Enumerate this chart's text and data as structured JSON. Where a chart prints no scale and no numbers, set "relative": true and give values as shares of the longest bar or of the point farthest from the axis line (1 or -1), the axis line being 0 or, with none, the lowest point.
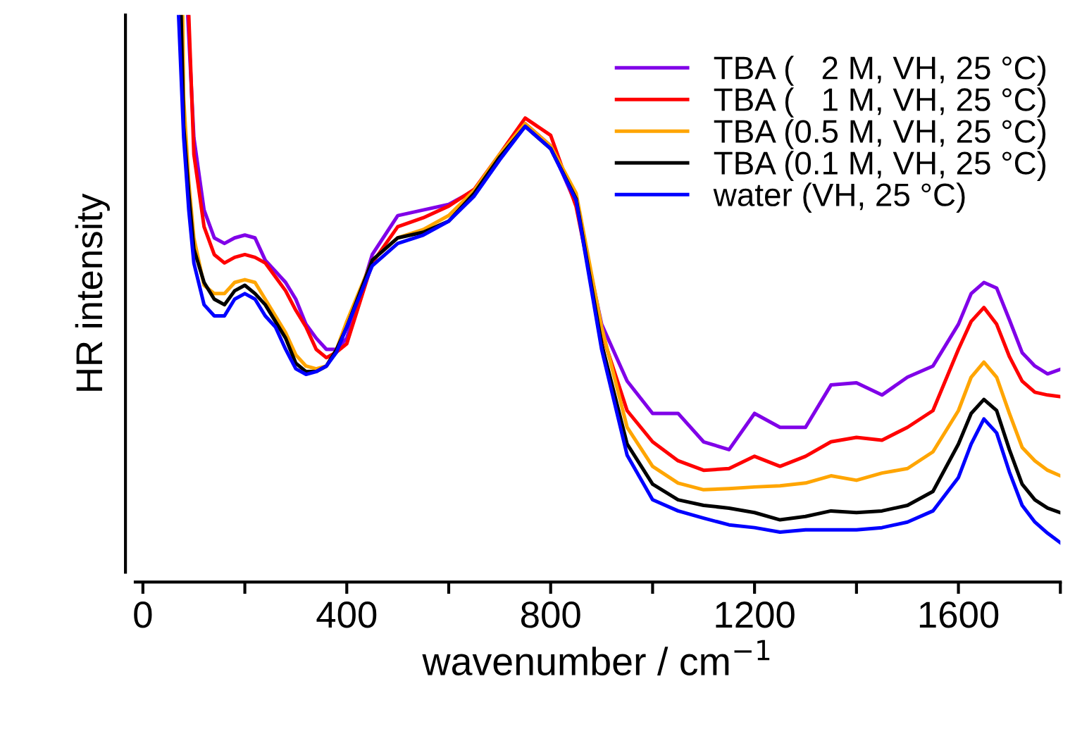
{
  "chart_data": {
    "type": "line",
    "relative": true,
    "xlabel": "wavenumber / cm$^{−1}$",
    "ylabel": "HR intensity",
    "xlim": [
      -15,
      1800
    ],
    "xticks": [
      0,
      {
        "value": 200,
        "label": null
      },
      400,
      {
        "value": 600,
        "label": null
      },
      800,
      {
        "value": 1000,
        "label": null
      },
      1200,
      {
        "value": 1400,
        "label": null
      },
      1600,
      {
        "value": 1800,
        "label": null
      }
    ],
    "legend": "top right",
    "grid": false,
    "line_style": "solid",
    "marker": "none",
    "series": [
      {
        "name": "TBA (   2 M, VH, 25 °C)",
        "color": "#8000e8",
        "x": [
          88,
          100,
          120,
          140,
          160,
          180,
          200,
          220,
          240,
          260,
          280,
          300,
          320,
          340,
          360,
          380,
          400,
          450,
          500,
          550,
          600,
          650,
          700,
          750,
          800,
          850,
          900,
          950,
          1000,
          1050,
          1100,
          1150,
          1200,
          1250,
          1300,
          1350,
          1400,
          1450,
          1500,
          1550,
          1600,
          1625,
          1650,
          1675,
          1700,
          1725,
          1750,
          1775,
          1800
        ],
        "values": [
          1.0,
          0.78,
          0.65,
          0.6,
          0.59,
          0.6,
          0.605,
          0.6,
          0.56,
          0.54,
          0.52,
          0.49,
          0.445,
          0.42,
          0.4,
          0.4,
          0.42,
          0.57,
          0.64,
          0.65,
          0.66,
          0.685,
          0.745,
          0.805,
          0.765,
          0.66,
          0.445,
          0.343,
          0.285,
          0.285,
          0.234,
          0.22,
          0.285,
          0.26,
          0.26,
          0.336,
          0.34,
          0.318,
          0.35,
          0.37,
          0.445,
          0.5,
          0.52,
          0.51,
          0.453,
          0.394,
          0.37,
          0.356,
          0.364
        ]
      },
      {
        "name": "TBA (   1 M, VH, 25 °C)",
        "color": "#ff0000",
        "x": [
          90,
          100,
          120,
          140,
          160,
          180,
          200,
          220,
          240,
          260,
          280,
          300,
          320,
          340,
          360,
          380,
          400,
          450,
          500,
          550,
          600,
          650,
          700,
          750,
          800,
          850,
          900,
          950,
          1000,
          1050,
          1100,
          1150,
          1200,
          1250,
          1300,
          1350,
          1400,
          1450,
          1500,
          1550,
          1600,
          1625,
          1650,
          1675,
          1700,
          1725,
          1750,
          1775,
          1800
        ],
        "values": [
          1.0,
          0.75,
          0.62,
          0.57,
          0.555,
          0.565,
          0.57,
          0.565,
          0.555,
          0.53,
          0.505,
          0.47,
          0.44,
          0.4,
          0.385,
          0.395,
          0.41,
          0.555,
          0.62,
          0.636,
          0.657,
          0.687,
          0.75,
          0.815,
          0.784,
          0.656,
          0.43,
          0.29,
          0.234,
          0.2,
          0.183,
          0.186,
          0.208,
          0.19,
          0.208,
          0.234,
          0.242,
          0.237,
          0.26,
          0.29,
          0.4,
          0.45,
          0.475,
          0.445,
          0.387,
          0.343,
          0.323,
          0.318,
          0.315
        ]
      },
      {
        "name": "TBA (0.5 M, VH, 25 °C)",
        "color": "#ffa500",
        "x": [
          78,
          80,
          90,
          100,
          120,
          140,
          160,
          180,
          200,
          220,
          240,
          260,
          280,
          300,
          320,
          340,
          360,
          380,
          400,
          450,
          500,
          550,
          600,
          650,
          700,
          750,
          800,
          850,
          900,
          950,
          1000,
          1050,
          1100,
          1150,
          1200,
          1250,
          1300,
          1350,
          1400,
          1450,
          1500,
          1550,
          1600,
          1625,
          1650,
          1675,
          1700,
          1725,
          1750,
          1775,
          1800
        ],
        "values": [
          1.0,
          0.85,
          0.7,
          0.6,
          0.515,
          0.5,
          0.5,
          0.52,
          0.525,
          0.52,
          0.49,
          0.46,
          0.43,
          0.39,
          0.37,
          0.365,
          0.37,
          0.4,
          0.45,
          0.56,
          0.6,
          0.615,
          0.64,
          0.685,
          0.75,
          0.805,
          0.765,
          0.68,
          0.44,
          0.26,
          0.19,
          0.16,
          0.148,
          0.15,
          0.153,
          0.155,
          0.16,
          0.173,
          0.165,
          0.178,
          0.186,
          0.216,
          0.29,
          0.35,
          0.377,
          0.35,
          0.285,
          0.224,
          0.2,
          0.183,
          0.173
        ]
      },
      {
        "name": "TBA (0.1 M, VH, 25 °C)",
        "color": "#000000",
        "x": [
          75,
          80,
          90,
          100,
          120,
          140,
          160,
          180,
          200,
          220,
          240,
          260,
          280,
          300,
          320,
          340,
          360,
          380,
          400,
          450,
          500,
          550,
          600,
          650,
          700,
          750,
          800,
          850,
          900,
          950,
          1000,
          1050,
          1100,
          1150,
          1200,
          1250,
          1300,
          1350,
          1400,
          1450,
          1500,
          1550,
          1600,
          1625,
          1650,
          1675,
          1700,
          1725,
          1750,
          1775,
          1800
        ],
        "values": [
          1.0,
          0.8,
          0.68,
          0.58,
          0.52,
          0.49,
          0.48,
          0.505,
          0.515,
          0.5,
          0.48,
          0.45,
          0.42,
          0.375,
          0.36,
          0.36,
          0.37,
          0.4,
          0.44,
          0.56,
          0.6,
          0.61,
          0.63,
          0.68,
          0.745,
          0.8,
          0.76,
          0.67,
          0.41,
          0.23,
          0.158,
          0.13,
          0.12,
          0.115,
          0.107,
          0.094,
          0.1,
          0.11,
          0.107,
          0.11,
          0.12,
          0.145,
          0.23,
          0.285,
          0.31,
          0.29,
          0.22,
          0.158,
          0.13,
          0.115,
          0.107
        ]
      },
      {
        "name": "water (VH, 25 °C)",
        "color": "#0000ff",
        "x": [
          70,
          80,
          90,
          100,
          120,
          140,
          160,
          180,
          200,
          220,
          240,
          260,
          280,
          300,
          320,
          340,
          360,
          380,
          400,
          450,
          500,
          550,
          600,
          650,
          700,
          750,
          800,
          850,
          900,
          950,
          1000,
          1050,
          1100,
          1150,
          1200,
          1250,
          1300,
          1350,
          1400,
          1450,
          1500,
          1550,
          1600,
          1625,
          1650,
          1675,
          1700,
          1725,
          1750,
          1775,
          1800
        ],
        "values": [
          1.0,
          0.78,
          0.65,
          0.555,
          0.48,
          0.46,
          0.46,
          0.49,
          0.5,
          0.49,
          0.46,
          0.44,
          0.4,
          0.365,
          0.355,
          0.36,
          0.37,
          0.395,
          0.44,
          0.55,
          0.59,
          0.605,
          0.63,
          0.675,
          0.74,
          0.8,
          0.76,
          0.667,
          0.4,
          0.21,
          0.13,
          0.11,
          0.097,
          0.085,
          0.08,
          0.072,
          0.076,
          0.076,
          0.076,
          0.08,
          0.09,
          0.11,
          0.17,
          0.23,
          0.275,
          0.25,
          0.18,
          0.12,
          0.09,
          0.07,
          0.053
        ]
      }
    ]
  }
}
